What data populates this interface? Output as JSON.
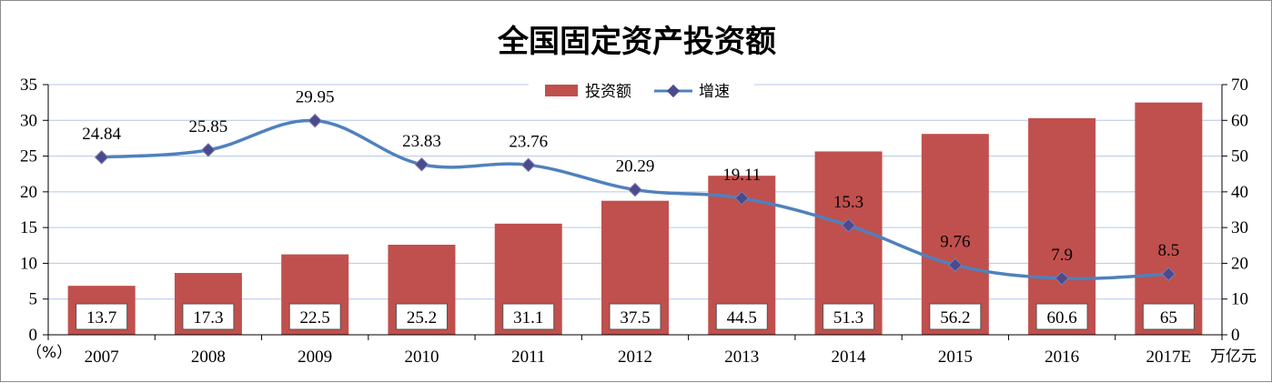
{
  "chart_data": {
    "type": "bar",
    "title": "全国固定资产投资额",
    "categories": [
      "2007",
      "2008",
      "2009",
      "2010",
      "2011",
      "2012",
      "2013",
      "2014",
      "2015",
      "2016",
      "2017E"
    ],
    "series": [
      {
        "name": "投资额",
        "type": "bar",
        "axis": "right",
        "values": [
          13.7,
          17.3,
          22.5,
          25.2,
          31.1,
          37.5,
          44.5,
          51.3,
          56.2,
          60.6,
          65
        ],
        "color": "#c0504d"
      },
      {
        "name": "增速",
        "type": "line",
        "axis": "left",
        "values": [
          24.84,
          25.85,
          29.95,
          23.83,
          23.76,
          20.29,
          19.11,
          15.3,
          9.76,
          7.9,
          8.5
        ],
        "color": "#4f81bd",
        "marker_color": "#4a4a8c"
      }
    ],
    "y_left": {
      "ticks": [
        "0",
        "5",
        "10",
        "15",
        "20",
        "25",
        "30",
        "35"
      ],
      "range": [
        0,
        35
      ],
      "unit_label": "（%）"
    },
    "y_right": {
      "ticks": [
        "0",
        "10",
        "20",
        "30",
        "40",
        "50",
        "60",
        "70"
      ],
      "range": [
        0,
        70
      ],
      "unit_label": "万亿元"
    },
    "grid": true,
    "gridline_color": "#b4c7e7",
    "legend_position": "top-center"
  }
}
